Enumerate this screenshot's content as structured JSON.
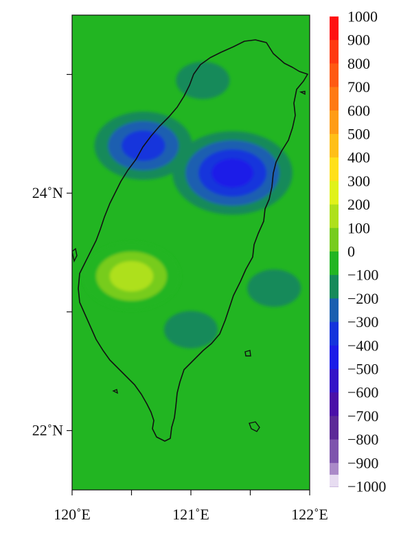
{
  "chart_data": {
    "type": "heatmap",
    "title": "",
    "xlabel": "",
    "ylabel": "",
    "xlim": [
      120,
      122
    ],
    "ylim": [
      21.5,
      25.5
    ],
    "x_ticks": [
      {
        "value": 120.0,
        "label": "120˚E"
      },
      {
        "value": 120.5,
        "label": ""
      },
      {
        "value": 121.0,
        "label": "121˚E"
      },
      {
        "value": 121.5,
        "label": ""
      },
      {
        "value": 122.0,
        "label": "122˚E"
      }
    ],
    "y_ticks": [
      {
        "value": 22.0,
        "label": "22˚N"
      },
      {
        "value": 23.0,
        "label": ""
      },
      {
        "value": 24.0,
        "label": "24˚N"
      },
      {
        "value": 25.0,
        "label": ""
      }
    ],
    "colorbar": {
      "levels": [
        {
          "value": 1000,
          "label": "1000",
          "color": "#ff1111"
        },
        {
          "value": 900,
          "label": "900",
          "color": "#ff3a10"
        },
        {
          "value": 800,
          "label": "800",
          "color": "#ff5a12"
        },
        {
          "value": 700,
          "label": "700",
          "color": "#ff7a14"
        },
        {
          "value": 600,
          "label": "600",
          "color": "#ff9c16"
        },
        {
          "value": 500,
          "label": "500",
          "color": "#ffbf18"
        },
        {
          "value": 400,
          "label": "400",
          "color": "#ffe01a"
        },
        {
          "value": 300,
          "label": "300",
          "color": "#e0f21a"
        },
        {
          "value": 200,
          "label": "200",
          "color": "#aee01c"
        },
        {
          "value": 100,
          "label": "100",
          "color": "#77cc1e"
        },
        {
          "value": 0,
          "label": "0",
          "color": "#22b522"
        },
        {
          "value": -100,
          "label": "−100",
          "color": "#168a5a"
        },
        {
          "value": -200,
          "label": "−200",
          "color": "#1a5fb0"
        },
        {
          "value": -300,
          "label": "−300",
          "color": "#1434dc"
        },
        {
          "value": -400,
          "label": "−400",
          "color": "#1c1ce8"
        },
        {
          "value": -500,
          "label": "−500",
          "color": "#3414c8"
        },
        {
          "value": -600,
          "label": "−600",
          "color": "#4a10a8"
        },
        {
          "value": -700,
          "label": "−700",
          "color": "#5c2a98"
        },
        {
          "value": -800,
          "label": "−800",
          "color": "#7e54ad"
        },
        {
          "value": -900,
          "label": "−900",
          "color": "#aa8ac8"
        },
        {
          "value": -1000,
          "label": "−1000",
          "color": "#e7dcf1"
        }
      ]
    },
    "field_features": [
      {
        "lon": 121.35,
        "lat": 24.17,
        "value": -350
      },
      {
        "lon": 120.6,
        "lat": 24.4,
        "value": -300
      },
      {
        "lon": 120.5,
        "lat": 23.3,
        "value": 250
      },
      {
        "lon": 121.0,
        "lat": 22.85,
        "value": -120
      },
      {
        "lon": 121.7,
        "lat": 23.2,
        "value": -100
      },
      {
        "lon": 121.1,
        "lat": 24.95,
        "value": -80
      }
    ],
    "background_value": 30,
    "grid": false,
    "legend": "right"
  }
}
